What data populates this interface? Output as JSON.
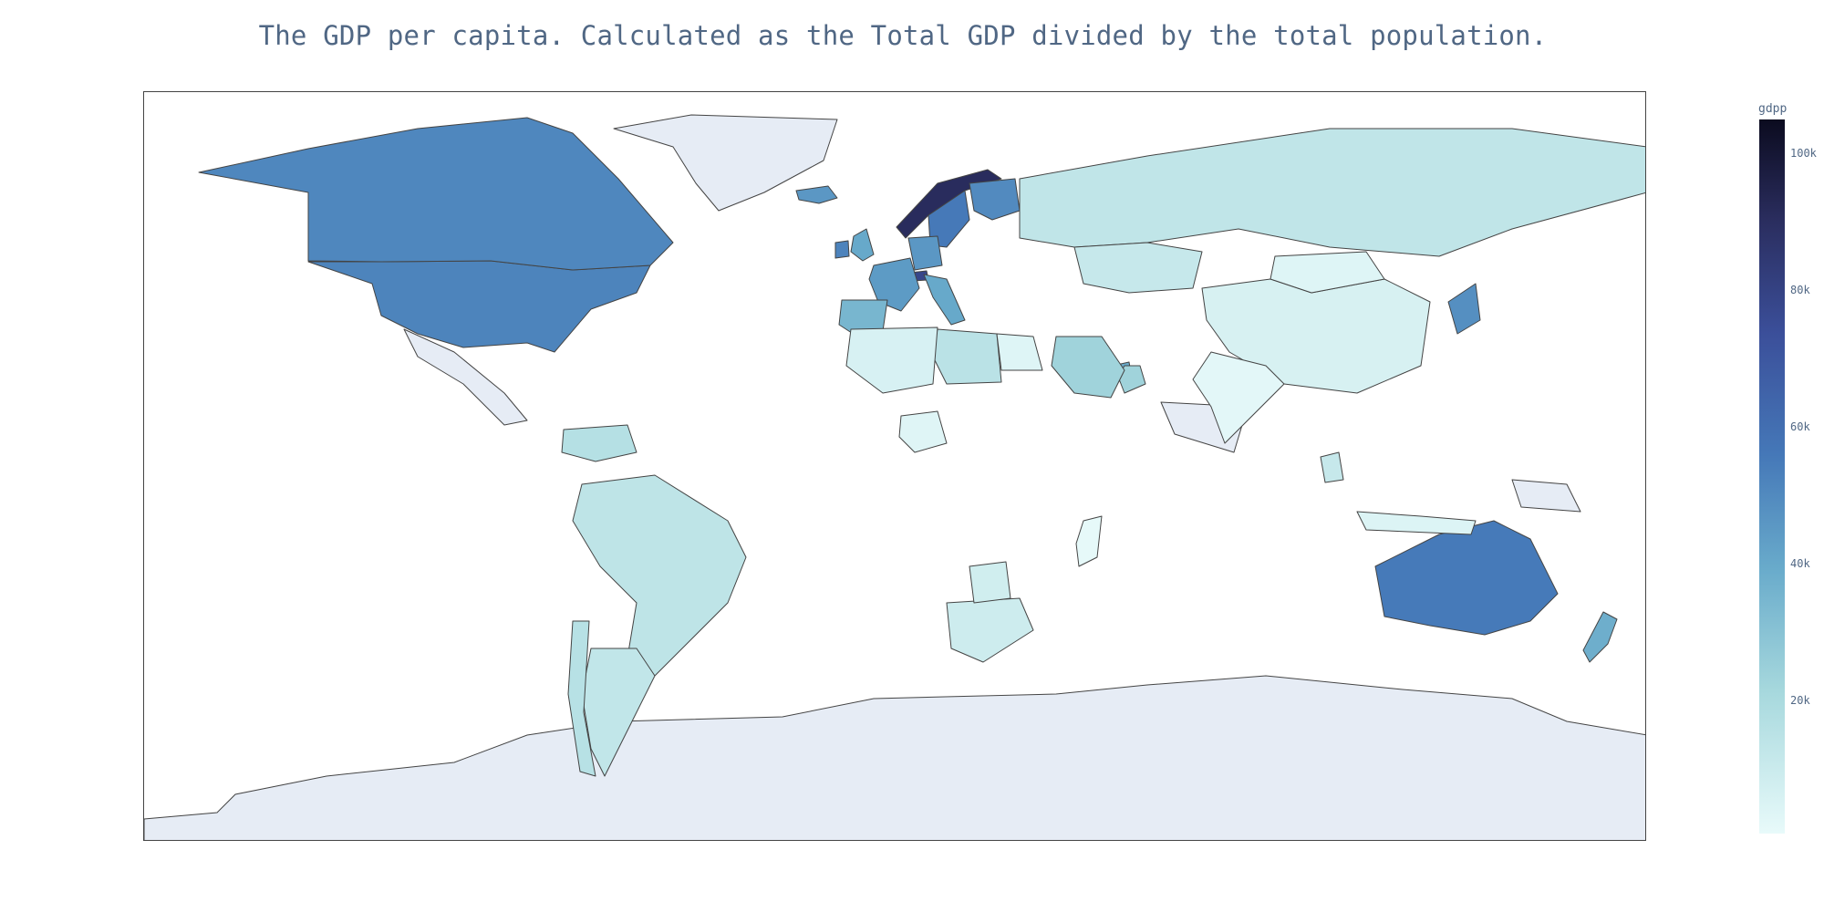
{
  "title": "The GDP per capita. Calculated as the Total GDP divided by the total population.",
  "colorbar": {
    "title": "gdpp",
    "ticks": [
      "100k",
      "80k",
      "60k",
      "40k",
      "20k"
    ],
    "range": [
      0,
      105000
    ],
    "colors": [
      "#e8fafa",
      "#a6d8dd",
      "#69abcb",
      "#4578b8",
      "#3b4f9a",
      "#2a2d5e",
      "#0b0b1f"
    ]
  },
  "colors": {
    "no_data": "#e6ecf5",
    "border": "#444444",
    "title": "#506784"
  },
  "chart_data": {
    "type": "choropleth",
    "projection": "equirectangular",
    "variable": "gdpp",
    "regions": [
      {
        "name": "Norway",
        "gdpp": 87800
      },
      {
        "name": "Switzerland",
        "gdpp": 74600
      },
      {
        "name": "United States",
        "gdpp": 48400
      },
      {
        "name": "Canada",
        "gdpp": 47400
      },
      {
        "name": "Australia",
        "gdpp": 51900
      },
      {
        "name": "Sweden",
        "gdpp": 52100
      },
      {
        "name": "Finland",
        "gdpp": 46200
      },
      {
        "name": "Japan",
        "gdpp": 44500
      },
      {
        "name": "Germany",
        "gdpp": 41800
      },
      {
        "name": "France",
        "gdpp": 40600
      },
      {
        "name": "United Kingdom",
        "gdpp": 35800
      },
      {
        "name": "Iceland",
        "gdpp": 41900
      },
      {
        "name": "Ireland",
        "gdpp": 48700
      },
      {
        "name": "Spain",
        "gdpp": 30700
      },
      {
        "name": "Italy",
        "gdpp": 35800
      },
      {
        "name": "New Zealand",
        "gdpp": 33700
      },
      {
        "name": "Qatar",
        "gdpp": 70300
      },
      {
        "name": "United Arab Emirates",
        "gdpp": 35000
      },
      {
        "name": "Oman",
        "gdpp": 19300
      },
      {
        "name": "Saudi Arabia",
        "gdpp": 19300
      },
      {
        "name": "Russia",
        "gdpp": 10700
      },
      {
        "name": "Kazakhstan",
        "gdpp": 9070
      },
      {
        "name": "China",
        "gdpp": 4560
      },
      {
        "name": "India",
        "gdpp": 1350
      },
      {
        "name": "Brazil",
        "gdpp": 11200
      },
      {
        "name": "Argentina",
        "gdpp": 10300
      },
      {
        "name": "Chile",
        "gdpp": 12900
      },
      {
        "name": "Venezuela",
        "gdpp": 13500
      },
      {
        "name": "Libya",
        "gdpp": 12100
      },
      {
        "name": "South Africa",
        "gdpp": 7280
      },
      {
        "name": "Botswana",
        "gdpp": 6350
      },
      {
        "name": "Nigeria",
        "gdpp": 2330
      },
      {
        "name": "Egypt",
        "gdpp": 2600
      },
      {
        "name": "Algeria",
        "gdpp": 4460
      },
      {
        "name": "Mongolia",
        "gdpp": 2650
      },
      {
        "name": "Indonesia",
        "gdpp": 3110
      },
      {
        "name": "Malaysia",
        "gdpp": 9070
      },
      {
        "name": "Madagascar",
        "gdpp": 413
      }
    ]
  }
}
